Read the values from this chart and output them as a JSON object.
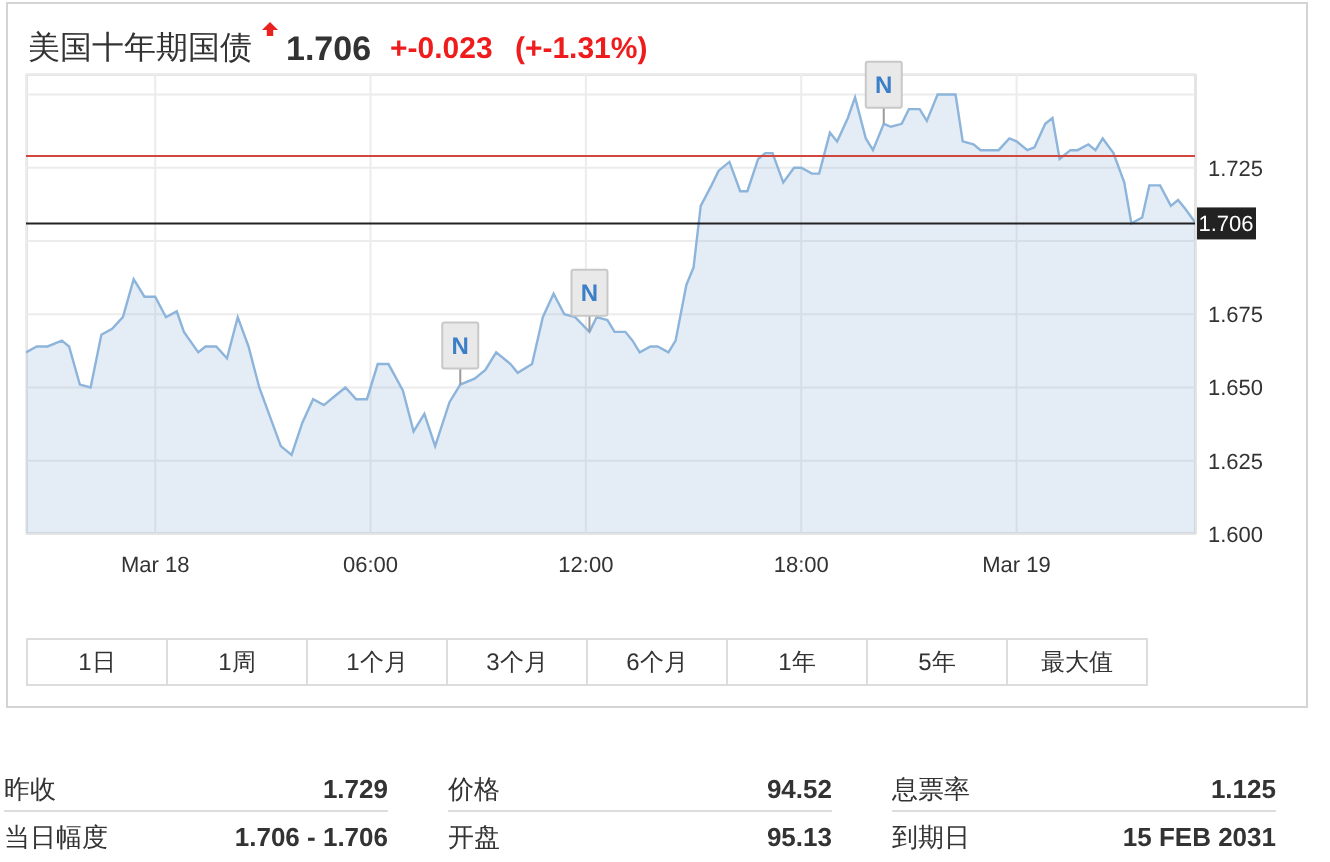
{
  "chart_data": [
    {
      "type": "area",
      "title": "美国十年期国债",
      "subtitle": "1.706",
      "annotations": [
        "+-0.023 (+-1.31%)",
        {
          "text": "N",
          "x": 8.5,
          "y": 1.651
        },
        {
          "text": "N",
          "x": 12.1,
          "y": 1.669
        },
        {
          "text": "N",
          "x": 20.3,
          "y": 1.74
        }
      ],
      "x": [
        -3.6,
        -3.3,
        -3.0,
        -2.6,
        -2.4,
        -2.1,
        -1.8,
        -1.5,
        -1.2,
        -0.9,
        -0.6,
        -0.3,
        0,
        0.3,
        0.6,
        0.8,
        1.2,
        1.4,
        1.7,
        2.0,
        2.3,
        2.6,
        2.9,
        3.2,
        3.5,
        3.8,
        4.1,
        4.4,
        4.7,
        5.0,
        5.3,
        5.6,
        5.9,
        6.2,
        6.5,
        6.9,
        7.2,
        7.5,
        7.8,
        8.2,
        8.5,
        8.9,
        9.2,
        9.5,
        9.9,
        10.1,
        10.5,
        10.8,
        11.1,
        11.4,
        11.7,
        12.1,
        12.3,
        12.6,
        12.8,
        13.1,
        13.3,
        13.5,
        13.8,
        14.0,
        14.3,
        14.5,
        14.8,
        15.0,
        15.2,
        15.5,
        15.7,
        16.0,
        16.3,
        16.5,
        16.8,
        17.0,
        17.2,
        17.5,
        17.8,
        18.0,
        18.3,
        18.5,
        18.8,
        19.0,
        19.3,
        19.5,
        19.8,
        20.0,
        20.3,
        20.5,
        20.8,
        21.0,
        21.3,
        21.5,
        21.8,
        22.1,
        22.3,
        22.5,
        22.8,
        23.0,
        23.3,
        23.5,
        23.8,
        24.0,
        24.3,
        24.5,
        24.8,
        25.0,
        25.2,
        25.5,
        25.7,
        26.0,
        26.2,
        26.4,
        26.7,
        27.0,
        27.2,
        27.5,
        27.7,
        28.0,
        28.3,
        28.5,
        28.7,
        29.0
      ],
      "values": [
        1.662,
        1.664,
        1.664,
        1.666,
        1.664,
        1.651,
        1.65,
        1.668,
        1.67,
        1.674,
        1.687,
        1.681,
        1.681,
        1.674,
        1.676,
        1.669,
        1.662,
        1.664,
        1.664,
        1.66,
        1.674,
        1.664,
        1.65,
        1.64,
        1.63,
        1.627,
        1.638,
        1.646,
        1.644,
        1.647,
        1.65,
        1.646,
        1.646,
        1.658,
        1.658,
        1.649,
        1.635,
        1.641,
        1.63,
        1.645,
        1.651,
        1.653,
        1.656,
        1.662,
        1.658,
        1.655,
        1.658,
        1.674,
        1.682,
        1.675,
        1.674,
        1.669,
        1.674,
        1.673,
        1.669,
        1.669,
        1.666,
        1.662,
        1.664,
        1.664,
        1.662,
        1.666,
        1.685,
        1.691,
        1.712,
        1.719,
        1.724,
        1.727,
        1.717,
        1.717,
        1.728,
        1.73,
        1.73,
        1.72,
        1.725,
        1.725,
        1.723,
        1.723,
        1.737,
        1.734,
        1.742,
        1.749,
        1.735,
        1.731,
        1.74,
        1.739,
        1.74,
        1.745,
        1.745,
        1.741,
        1.75,
        1.75,
        1.75,
        1.734,
        1.733,
        1.731,
        1.731,
        1.731,
        1.735,
        1.734,
        1.731,
        1.732,
        1.74,
        1.742,
        1.728,
        1.731,
        1.731,
        1.733,
        1.731,
        1.735,
        1.73,
        1.72,
        1.706,
        1.708,
        1.719,
        1.719,
        1.712,
        1.714,
        1.711,
        1.706
      ],
      "color": "#8db4da",
      "xlim": [
        -3.6,
        29
      ],
      "xticks": [
        {
          "value": 0,
          "label": "Mar 18"
        },
        {
          "value": 6,
          "label": "06:00"
        },
        {
          "value": 12,
          "label": "12:00"
        },
        {
          "value": 18,
          "label": "18:00"
        },
        {
          "value": 24,
          "label": "Mar 19"
        }
      ],
      "ylim": [
        1.6,
        1.757
      ],
      "yticks": [
        {
          "value": 1.6,
          "label": "1.600"
        },
        1.625,
        {
          "value": 1.65,
          "label": "1.650"
        },
        1.675,
        {
          "value": 1.7,
          "label": null
        },
        1.725,
        {
          "value": 1.75,
          "label": null
        }
      ],
      "grid": true,
      "ref_lines": [
        {
          "axis": "y",
          "value": 1.729,
          "color": "#d0473f"
        },
        {
          "axis": "y",
          "value": 1.706,
          "label": "1.706",
          "color": "#222222"
        }
      ]
    },
    {
      "type": "other",
      "annotations": [
        "1日",
        "1周",
        "1个月",
        "3个月",
        "6个月",
        "1年",
        "5年",
        "最大值"
      ]
    },
    {
      "type": "other",
      "annotations": [
        "昨收",
        "1.729",
        "价格",
        "94.52",
        "息票率",
        "1.125",
        "当日幅度",
        "1.706 - 1.706",
        "开盘",
        "95.13",
        "到期日",
        "15 FEB 2031"
      ]
    }
  ]
}
